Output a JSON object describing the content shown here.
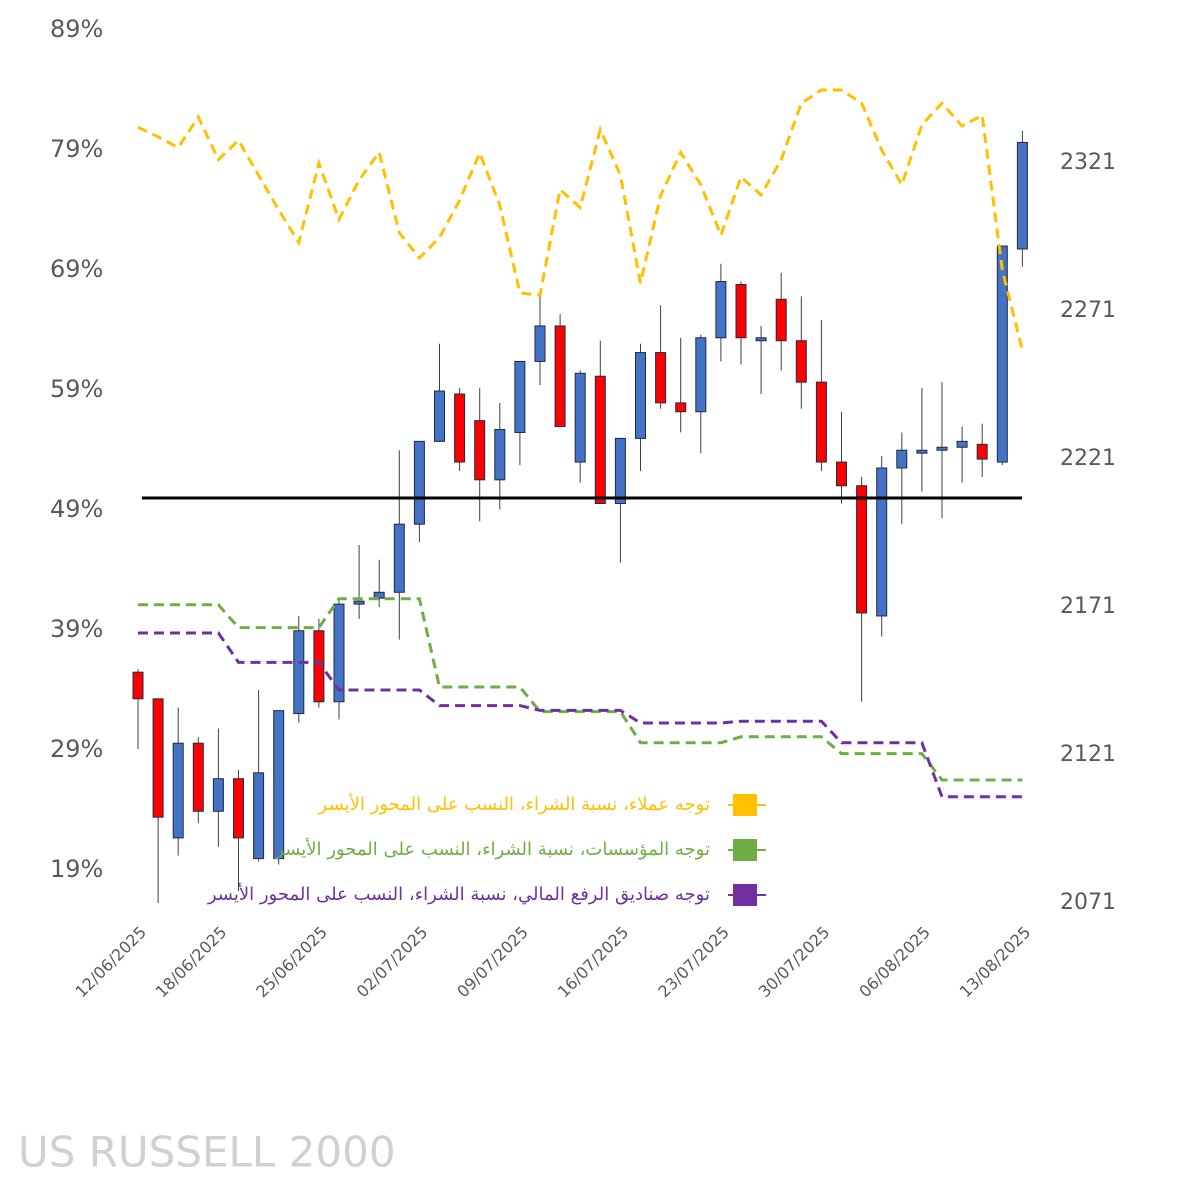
{
  "chart_data": {
    "type": "candlestick",
    "watermark": "US RUSSELL 2000",
    "categories": [
      "12/06/2025",
      null,
      null,
      null,
      "18/06/2025",
      null,
      null,
      null,
      null,
      "25/06/2025",
      null,
      null,
      null,
      null,
      "02/07/2025",
      null,
      null,
      null,
      null,
      "09/07/2025",
      null,
      null,
      null,
      null,
      "16/07/2025",
      null,
      null,
      null,
      null,
      "23/07/2025",
      null,
      null,
      null,
      null,
      "30/07/2025",
      null,
      null,
      null,
      null,
      "06/08/2025",
      null,
      null,
      null,
      null,
      "13/08/2025"
    ],
    "candles": {
      "axis": "y2",
      "up_color": "#4472c4",
      "down_color": "#ff0000",
      "open": [
        2149,
        2140,
        2093,
        2125,
        2102,
        2113,
        2086,
        2086,
        2135,
        2163,
        2139,
        2172,
        2174,
        2176,
        2199,
        2227,
        2243,
        2234,
        2214,
        2230,
        2254,
        2266,
        2220,
        2249,
        2206,
        2228,
        2257,
        2240,
        2237,
        2262,
        2280,
        2261,
        2275,
        2261,
        2247,
        2220,
        2212,
        2168,
        2218,
        2223,
        2224,
        2225,
        2226,
        2220,
        2292
      ],
      "high": [
        2150,
        2140,
        2137,
        2127,
        2130,
        2116,
        2143,
        2136,
        2168,
        2167,
        2174,
        2192,
        2187,
        2224,
        2227,
        2260,
        2245,
        2245,
        2240,
        2254,
        2277,
        2270,
        2251,
        2261,
        2228,
        2260,
        2273,
        2262,
        2263,
        2287,
        2281,
        2266,
        2284,
        2276,
        2268,
        2237,
        2215,
        2222,
        2230,
        2245,
        2247,
        2232,
        2233,
        2293,
        2332
      ],
      "low": [
        2123,
        2071,
        2087,
        2098,
        2090,
        2075,
        2085,
        2084,
        2132,
        2137,
        2133,
        2167,
        2171,
        2160,
        2193,
        2227,
        2217,
        2200,
        2204,
        2219,
        2246,
        2232,
        2213,
        2206,
        2186,
        2217,
        2238,
        2230,
        2223,
        2254,
        2253,
        2243,
        2251,
        2238,
        2217,
        2206,
        2139,
        2161,
        2199,
        2210,
        2201,
        2213,
        2215,
        2219,
        2286
      ],
      "close": [
        2140,
        2100,
        2125,
        2102,
        2113,
        2093,
        2115,
        2136,
        2163,
        2139,
        2172,
        2173,
        2176,
        2199,
        2227,
        2244,
        2220,
        2214,
        2231,
        2254,
        2266,
        2232,
        2250,
        2206,
        2228,
        2257,
        2240,
        2237,
        2262,
        2281,
        2262,
        2262,
        2261,
        2247,
        2220,
        2212,
        2169,
        2218,
        2224,
        2224,
        2225,
        2227,
        2221,
        2293,
        2328
      ]
    },
    "series": [
      {
        "name": "توجه عملاء، نسبة الشراء، النسب على المحور الأيسر",
        "color": "#ffc000",
        "values": [
          80.9,
          80.1,
          79.2,
          81.75,
          78.2,
          79.8,
          76.9,
          74,
          71.3,
          77.9,
          73.2,
          76.5,
          78.8,
          72.1,
          70,
          71.7,
          74.8,
          78.75,
          74.4,
          67.1,
          66.9,
          75.7,
          74.2,
          80.7,
          76.9,
          67.9,
          75.2,
          78.8,
          76.1,
          71.9,
          76.75,
          75.25,
          78.2,
          82.9,
          84,
          84,
          82.9,
          79,
          76.1,
          81.1,
          82.9,
          81,
          81.9,
          69,
          62.3
        ]
      },
      {
        "name": "توجه المؤسسات، نسبة الشراء، النسب على المحور الأيسر",
        "color": "#70ad47",
        "values": [
          41.1,
          41.1,
          41.1,
          41.1,
          41.1,
          39.2,
          39.2,
          39.2,
          39.2,
          39.2,
          41.6,
          41.6,
          41.6,
          41.6,
          41.6,
          34.25,
          34.25,
          34.25,
          34.25,
          34.25,
          32.2,
          32.2,
          32.2,
          32.2,
          32.2,
          29.6,
          29.6,
          29.6,
          29.6,
          29.6,
          30.1,
          30.1,
          30.1,
          30.1,
          30.1,
          28.7,
          28.7,
          28.7,
          28.7,
          28.7,
          26.5,
          26.5,
          26.5,
          26.5,
          26.5
        ]
      },
      {
        "name": "توجه صناديق الرفع المالي، نسبة الشراء، النسب على المحور الأيسر",
        "color": "#7030a0",
        "values": [
          38.75,
          38.75,
          38.75,
          38.75,
          38.75,
          36.3,
          36.3,
          36.3,
          36.3,
          36.3,
          34,
          34,
          34,
          34,
          34,
          32.7,
          32.7,
          32.7,
          32.7,
          32.7,
          32.3,
          32.3,
          32.3,
          32.3,
          32.3,
          31.25,
          31.25,
          31.25,
          31.25,
          31.25,
          31.4,
          31.4,
          31.4,
          31.4,
          31.4,
          29.6,
          29.6,
          29.6,
          29.6,
          29.6,
          25.1,
          25.1,
          25.1,
          25.1,
          25.1
        ]
      }
    ],
    "hline": 50,
    "ylim": [
      16.25,
      89
    ],
    "yticks": [
      {
        "value": 19,
        "label": "19%"
      },
      {
        "value": 29,
        "label": "29%"
      },
      {
        "value": 39,
        "label": "39%"
      },
      {
        "value": 49,
        "label": "49%"
      },
      {
        "value": 59,
        "label": "59%"
      },
      {
        "value": 69,
        "label": "69%"
      },
      {
        "value": 79,
        "label": "79%"
      },
      {
        "value": 89,
        "label": "89%"
      }
    ],
    "y2lim": [
      2071,
      2366
    ],
    "y2ticks": [
      2071,
      2121,
      2171,
      2221,
      2271,
      2321
    ],
    "grid": false
  }
}
